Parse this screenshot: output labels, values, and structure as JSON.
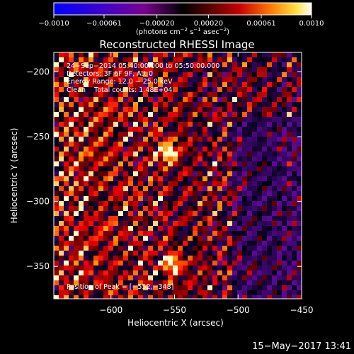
{
  "chart_data": {
    "type": "heatmap",
    "title": "Reconstructed RHESSI Image",
    "xlabel": "Heliocentric X (arcsec)",
    "ylabel": "Heliocentric Y (arcsec)",
    "xlim": [
      -645,
      -450
    ],
    "ylim": [
      -375,
      -185
    ],
    "x_ticks": [
      -600,
      -550,
      -500,
      -450
    ],
    "x_tick_labels": [
      "−600",
      "−550",
      "−500",
      "−450"
    ],
    "y_ticks": [
      -200,
      -250,
      -300,
      -350
    ],
    "y_tick_labels": [
      "−200",
      "−250",
      "−300",
      "−350"
    ],
    "colorbar": {
      "min": -0.001,
      "max": 0.001,
      "ticks": [
        -0.001,
        -0.00061,
        -0.0002,
        0.0002,
        0.00061,
        0.001
      ],
      "tick_labels": [
        "−0.0010",
        "−0.00061",
        "−0.00020",
        "0.00020",
        "0.00061",
        "0.0010"
      ],
      "label_parts": [
        "(photons cm",
        "−2",
        " s",
        "−1",
        " asec",
        "−2",
        ")"
      ]
    },
    "info_lines": [
      "24−Sep−2014 05:40:00.000 to 05:50:00.000",
      "Detectors: 3F 6F 9F, Att 0",
      "Energy Range: 12.0 − 25.0 keV",
      "Clean    Total counts: 1.48E+04"
    ],
    "peak_text": "Position of Peak = [−552,−348]",
    "peak": [
      -552,
      -348
    ],
    "secondary_peak": [
      -555,
      -262
    ]
  },
  "footer_timestamp": "15−May−2017 13:41"
}
